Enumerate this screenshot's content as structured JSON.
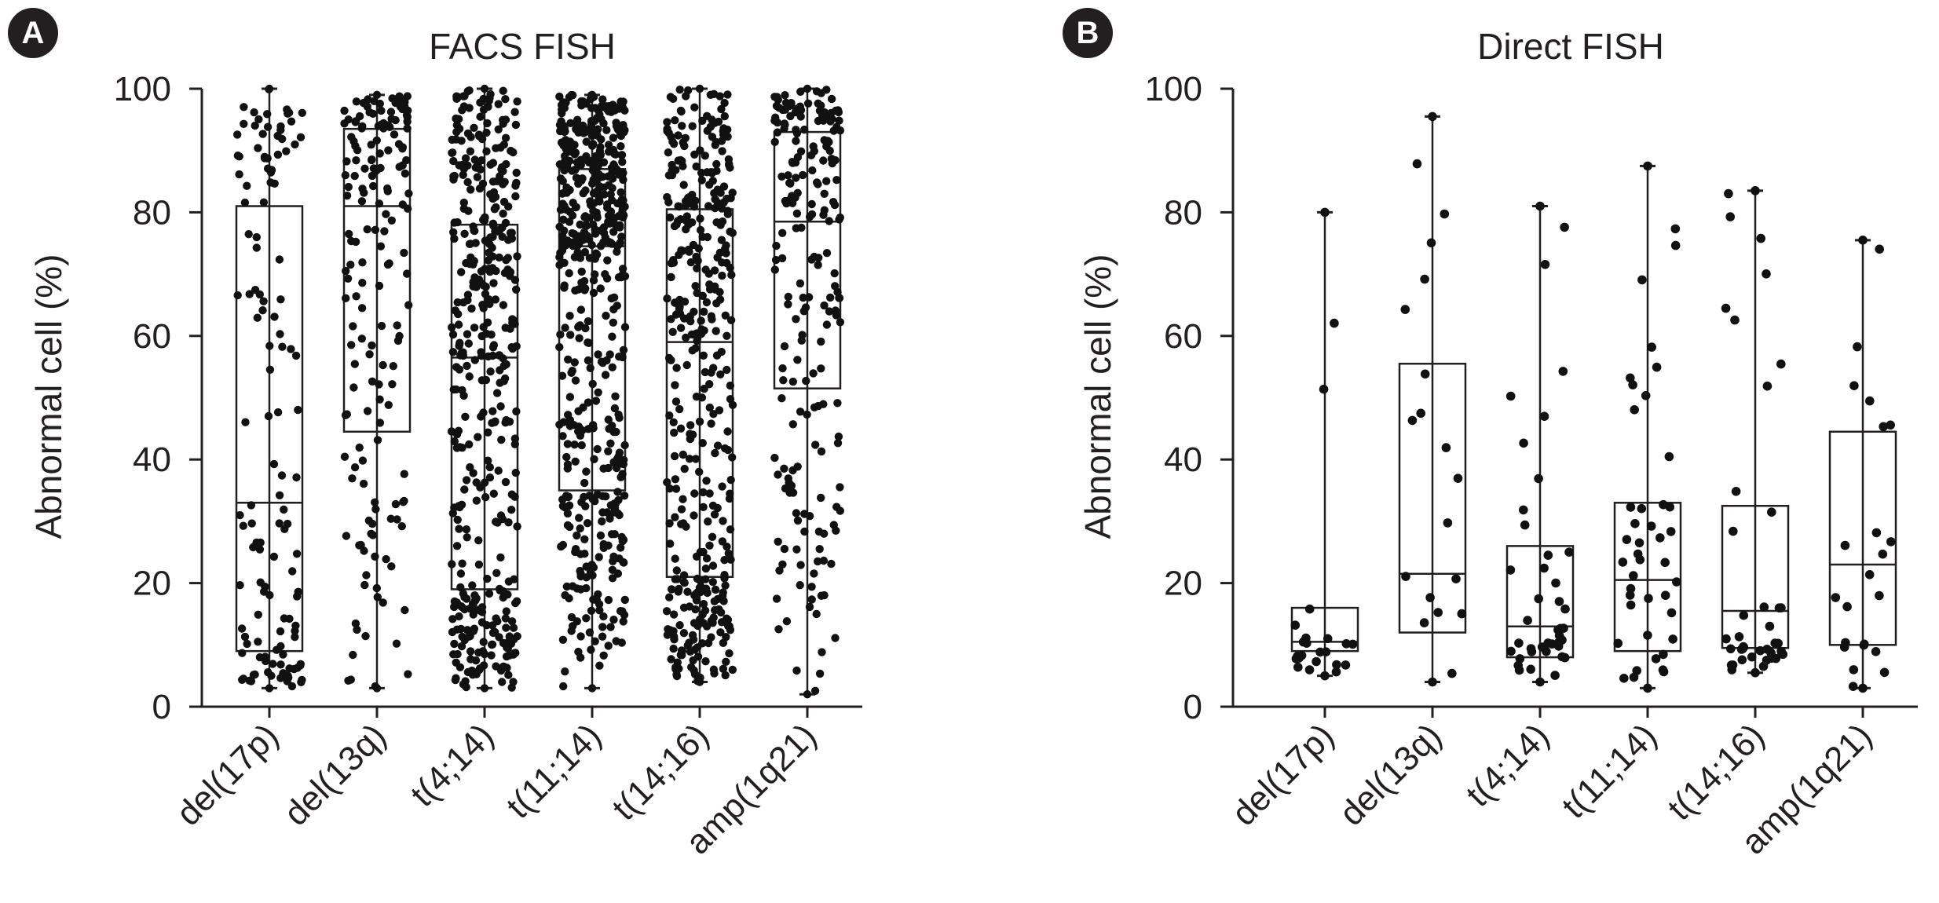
{
  "chart_data": [
    {
      "type": "box",
      "panel_label": "A",
      "title": "FACS FISH",
      "ylabel": "Abnormal cell (%)",
      "ylim": [
        0,
        100
      ],
      "yticks": [
        "0",
        "20",
        "40",
        "60",
        "80",
        "100"
      ],
      "categories": [
        "del(17p)",
        "del(13q)",
        "t(4;14)",
        "t(11;14)",
        "t(14;16)",
        "amp(1q21)"
      ],
      "boxes": [
        {
          "min": 3,
          "q1": 9,
          "median": 33,
          "q3": 81,
          "max": 100,
          "n_points": 130
        },
        {
          "min": 3,
          "q1": 44.5,
          "median": 81,
          "q3": 93.5,
          "max": 99,
          "n_points": 170
        },
        {
          "min": 3,
          "q1": 19,
          "median": 56.5,
          "q3": 78,
          "max": 100,
          "n_points": 420
        },
        {
          "min": 3,
          "q1": 35,
          "median": 74.5,
          "q3": 87,
          "max": 99,
          "n_points": 520
        },
        {
          "min": 4,
          "q1": 21,
          "median": 59,
          "q3": 80.5,
          "max": 100,
          "n_points": 400
        },
        {
          "min": 2,
          "q1": 51.5,
          "median": 78.5,
          "q3": 93,
          "max": 100,
          "n_points": 210
        }
      ]
    },
    {
      "type": "box",
      "panel_label": "B",
      "title": "Direct FISH",
      "ylabel": "Abnormal cell (%)",
      "ylim": [
        0,
        100
      ],
      "yticks": [
        "0",
        "20",
        "40",
        "60",
        "80",
        "100"
      ],
      "categories": [
        "del(17p)",
        "del(13q)",
        "t(4;14)",
        "t(11;14)",
        "t(14;16)",
        "amp(1q21)"
      ],
      "boxes": [
        {
          "min": 5,
          "q1": 9,
          "median": 10.5,
          "q3": 16,
          "max": 80,
          "n_points": 24
        },
        {
          "min": 4,
          "q1": 12,
          "median": 21.5,
          "q3": 55.5,
          "max": 95.5,
          "n_points": 20
        },
        {
          "min": 4,
          "q1": 8,
          "median": 13,
          "q3": 26,
          "max": 81,
          "n_points": 42
        },
        {
          "min": 3,
          "q1": 9,
          "median": 20.5,
          "q3": 33,
          "max": 87.5,
          "n_points": 44
        },
        {
          "min": 5.5,
          "q1": 9.5,
          "median": 15.5,
          "q3": 32.5,
          "max": 83.5,
          "n_points": 42
        },
        {
          "min": 3,
          "q1": 10,
          "median": 23,
          "q3": 44.5,
          "max": 75.5,
          "n_points": 24
        }
      ]
    }
  ]
}
